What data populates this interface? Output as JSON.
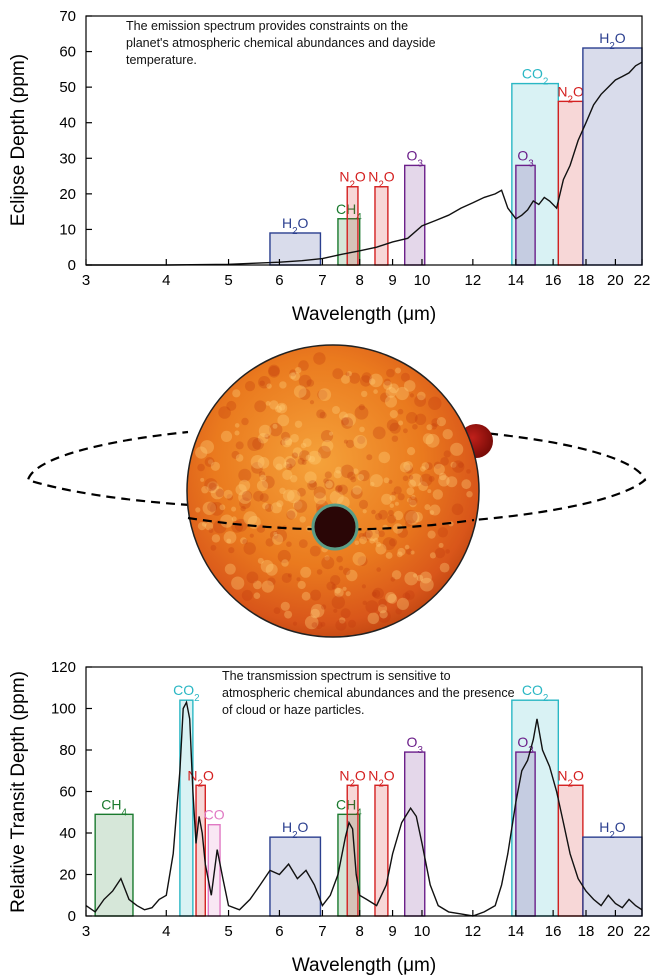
{
  "chart_data": [
    {
      "type": "line",
      "xlabel": "Wavelength (μm)",
      "ylabel": "Eclipse Depth (ppm)",
      "xscale": "log",
      "xlim": [
        3,
        22
      ],
      "ylim": [
        0,
        70
      ],
      "xticks": [
        3,
        4,
        5,
        6,
        7,
        8,
        9,
        10,
        12,
        14,
        16,
        18,
        20,
        22
      ],
      "yticks": [
        0,
        10,
        20,
        30,
        40,
        50,
        60,
        70
      ],
      "annotation": "The emission spectrum provides constraints on the planet's atmospheric chemical abundances and dayside temperature.",
      "bands": [
        {
          "molecule": "H2O",
          "x": [
            5.8,
            6.95
          ],
          "height": 9,
          "color": "#2b3f8f"
        },
        {
          "molecule": "CH4",
          "x": [
            7.4,
            8.0
          ],
          "height": 13,
          "color": "#1a7a2e"
        },
        {
          "molecule": "N2O",
          "x": [
            7.65,
            7.95
          ],
          "height": 22,
          "color": "#d42020"
        },
        {
          "molecule": "N2O",
          "x": [
            8.45,
            8.85
          ],
          "height": 22,
          "color": "#d42020"
        },
        {
          "molecule": "O3",
          "x": [
            9.4,
            10.1
          ],
          "height": 28,
          "color": "#6b1f8a"
        },
        {
          "molecule": "CO2",
          "x": [
            13.8,
            16.3
          ],
          "height": 51,
          "color": "#2ab7c4"
        },
        {
          "molecule": "O3",
          "x": [
            14.0,
            15.0
          ],
          "height": 28,
          "color": "#6b1f8a"
        },
        {
          "molecule": "N2O",
          "x": [
            16.3,
            17.8
          ],
          "height": 46,
          "color": "#d42020"
        },
        {
          "molecule": "H2O",
          "x": [
            17.8,
            22
          ],
          "height": 61,
          "color": "#2b3f8f"
        }
      ],
      "series": [
        {
          "x": [
            3,
            4,
            5,
            5.5,
            6,
            6.5,
            7,
            7.5,
            8,
            8.5,
            9,
            9.5,
            10,
            10.5,
            11,
            11.5,
            12,
            12.5,
            13,
            13.3,
            13.6,
            14,
            14.3,
            14.6,
            14.9,
            15.2,
            15.5,
            15.8,
            16.2,
            16.6,
            17,
            17.5,
            18,
            18.5,
            19,
            19.5,
            20,
            20.5,
            21,
            21.5,
            22
          ],
          "y": [
            0,
            0,
            0.2,
            0.5,
            0.8,
            1.2,
            1.8,
            3,
            4,
            5,
            6.5,
            7.5,
            11,
            12.5,
            14,
            16,
            17.5,
            19,
            20,
            21,
            16,
            13,
            14,
            15.5,
            18,
            17,
            19,
            18,
            16,
            24,
            28,
            35,
            40,
            45,
            48,
            50,
            52,
            53,
            54,
            56,
            57
          ]
        }
      ]
    },
    {
      "type": "line",
      "xlabel": "Wavelength (μm)",
      "ylabel": "Relative Transit Depth (ppm)",
      "xscale": "log",
      "xlim": [
        3,
        22
      ],
      "ylim": [
        0,
        120
      ],
      "xticks": [
        3,
        4,
        5,
        6,
        7,
        8,
        9,
        10,
        12,
        14,
        16,
        18,
        20,
        22
      ],
      "yticks": [
        0,
        20,
        40,
        60,
        80,
        100,
        120
      ],
      "annotation": "The transmission spectrum is sensitive to atmospheric chemical abundances and the presence of cloud or haze particles.",
      "bands": [
        {
          "molecule": "CH4",
          "x": [
            3.1,
            3.55
          ],
          "height": 49,
          "color": "#1a7a2e"
        },
        {
          "molecule": "CO2",
          "x": [
            4.2,
            4.4
          ],
          "height": 104,
          "color": "#2ab7c4"
        },
        {
          "molecule": "N2O",
          "x": [
            4.45,
            4.6
          ],
          "height": 63,
          "color": "#d42020"
        },
        {
          "molecule": "CO",
          "x": [
            4.65,
            4.85
          ],
          "height": 44,
          "color": "#e07ac4"
        },
        {
          "molecule": "H2O",
          "x": [
            5.8,
            6.95
          ],
          "height": 38,
          "color": "#2b3f8f"
        },
        {
          "molecule": "CH4",
          "x": [
            7.4,
            8.0
          ],
          "height": 49,
          "color": "#1a7a2e"
        },
        {
          "molecule": "N2O",
          "x": [
            7.65,
            7.95
          ],
          "height": 63,
          "color": "#d42020"
        },
        {
          "molecule": "N2O",
          "x": [
            8.45,
            8.85
          ],
          "height": 63,
          "color": "#d42020"
        },
        {
          "molecule": "O3",
          "x": [
            9.4,
            10.1
          ],
          "height": 79,
          "color": "#6b1f8a"
        },
        {
          "molecule": "CO2",
          "x": [
            13.8,
            16.3
          ],
          "height": 104,
          "color": "#2ab7c4"
        },
        {
          "molecule": "O3",
          "x": [
            14.0,
            15.0
          ],
          "height": 79,
          "color": "#6b1f8a"
        },
        {
          "molecule": "N2O",
          "x": [
            16.3,
            17.8
          ],
          "height": 63,
          "color": "#d42020"
        },
        {
          "molecule": "H2O",
          "x": [
            17.8,
            22
          ],
          "height": 38,
          "color": "#2b3f8f"
        }
      ],
      "series": [
        {
          "x": [
            3,
            3.1,
            3.2,
            3.3,
            3.4,
            3.5,
            3.6,
            3.7,
            3.8,
            3.9,
            4.0,
            4.1,
            4.2,
            4.25,
            4.3,
            4.35,
            4.4,
            4.45,
            4.5,
            4.55,
            4.6,
            4.7,
            4.8,
            4.9,
            5.0,
            5.2,
            5.4,
            5.6,
            5.8,
            6.0,
            6.2,
            6.4,
            6.6,
            6.8,
            7.0,
            7.2,
            7.4,
            7.6,
            7.7,
            7.8,
            7.9,
            8.0,
            8.2,
            8.5,
            8.8,
            9.0,
            9.3,
            9.6,
            9.8,
            10.0,
            10.3,
            10.6,
            11,
            11.5,
            12,
            12.5,
            13,
            13.3,
            13.6,
            14,
            14.3,
            14.6,
            14.9,
            15.1,
            15.4,
            15.8,
            16.2,
            16.6,
            17,
            17.5,
            18,
            18.5,
            19,
            19.5,
            20,
            20.5,
            21,
            21.5,
            22
          ],
          "y": [
            5,
            2,
            8,
            12,
            18,
            8,
            5,
            3,
            4,
            8,
            10,
            30,
            70,
            100,
            103,
            95,
            60,
            35,
            48,
            40,
            25,
            10,
            32,
            18,
            5,
            3,
            8,
            15,
            22,
            20,
            25,
            18,
            22,
            15,
            5,
            10,
            20,
            38,
            45,
            42,
            20,
            10,
            8,
            5,
            15,
            30,
            45,
            52,
            48,
            35,
            15,
            5,
            2,
            1,
            0,
            2,
            5,
            15,
            30,
            55,
            70,
            75,
            85,
            95,
            80,
            72,
            60,
            45,
            30,
            18,
            12,
            8,
            5,
            10,
            6,
            4,
            8,
            5,
            3
          ]
        }
      ]
    }
  ]
}
